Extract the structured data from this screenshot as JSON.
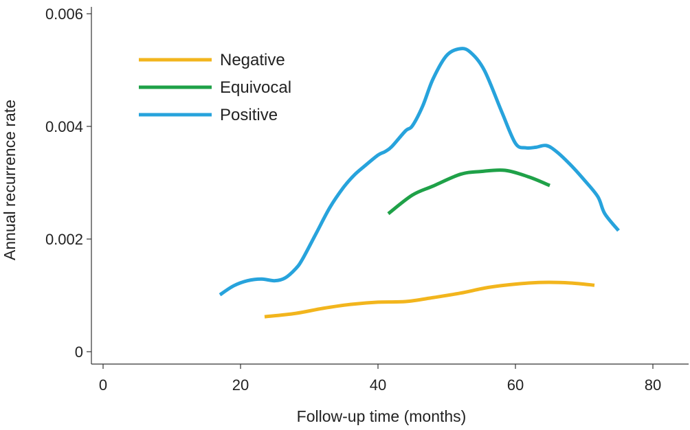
{
  "chart_data": {
    "type": "line",
    "title": "",
    "xlabel": "Follow-up time (months)",
    "ylabel": "Annual recurrence rate",
    "xlim": [
      -2,
      85
    ],
    "ylim": [
      -0.0001,
      0.006
    ],
    "xticks": [
      0,
      20,
      40,
      60,
      80
    ],
    "xtick_labels": [
      "0",
      "20",
      "40",
      "60",
      "80"
    ],
    "yticks": [
      0,
      0.002,
      0.004,
      0.006
    ],
    "ytick_labels": [
      "0",
      "0.002",
      "0.004",
      "0.006"
    ],
    "grid": false,
    "legend_position": "top-left",
    "series": [
      {
        "name": "Negative",
        "color": "#f2b51d",
        "x": [
          23.5,
          28,
          32,
          36,
          40,
          44,
          48,
          52,
          56,
          60,
          64,
          68,
          71.5
        ],
        "y": [
          0.00062,
          0.00068,
          0.00077,
          0.00084,
          0.00088,
          0.00089,
          0.00096,
          0.00104,
          0.00114,
          0.0012,
          0.00123,
          0.00122,
          0.00118
        ]
      },
      {
        "name": "Equivocal",
        "color": "#1fa148",
        "x": [
          41.5,
          45,
          48,
          52,
          55,
          58.5,
          62,
          65
        ],
        "y": [
          0.00245,
          0.00278,
          0.00294,
          0.00315,
          0.0032,
          0.00322,
          0.0031,
          0.00295
        ]
      },
      {
        "name": "Positive",
        "color": "#27a3dc",
        "x": [
          17,
          19,
          21,
          23,
          25,
          26.5,
          28,
          29,
          31,
          33,
          35,
          36.5,
          38,
          40,
          41,
          42,
          44,
          45,
          46.5,
          48,
          50,
          52,
          53.5,
          55.5,
          58,
          60,
          61.5,
          63,
          64.5,
          66,
          68,
          70,
          72,
          73,
          75
        ],
        "y": [
          0.00101,
          0.00117,
          0.00126,
          0.00129,
          0.00126,
          0.00131,
          0.00147,
          0.00164,
          0.0021,
          0.00256,
          0.00292,
          0.00313,
          0.00329,
          0.00349,
          0.00355,
          0.00364,
          0.00392,
          0.00401,
          0.00436,
          0.00484,
          0.00526,
          0.00538,
          0.00531,
          0.00499,
          0.00426,
          0.0037,
          0.00362,
          0.00363,
          0.00366,
          0.00355,
          0.00332,
          0.00305,
          0.00275,
          0.00245,
          0.00215
        ]
      }
    ]
  }
}
